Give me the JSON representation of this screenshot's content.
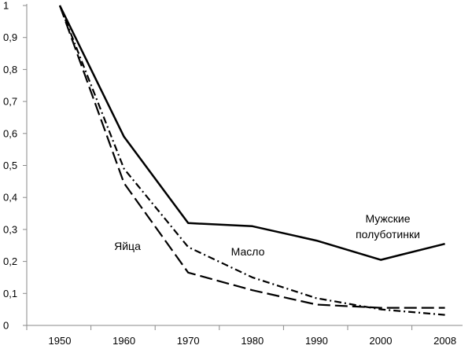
{
  "chart_data": {
    "type": "line",
    "title": "",
    "xlabel": "",
    "ylabel": "",
    "x": [
      1950,
      1960,
      1970,
      1980,
      1990,
      2000,
      2008
    ],
    "x_tick_labels": [
      "1950",
      "1960",
      "1970",
      "1980",
      "1990",
      "2000",
      "2008"
    ],
    "y_tick_labels": [
      "0",
      "0,1",
      "0,2",
      "0,3",
      "0,4",
      "0,5",
      "0,6",
      "0,7",
      "0,8",
      "0,9",
      "1"
    ],
    "ylim": [
      0,
      1
    ],
    "grid": false,
    "legend": "none",
    "series": [
      {
        "name": "Мужские полуботинки",
        "label_lines": [
          "Мужские",
          "полуботинки"
        ],
        "style": "solid",
        "color": "#000000",
        "values": [
          1.0,
          0.59,
          0.32,
          0.31,
          0.265,
          0.205,
          0.255
        ]
      },
      {
        "name": "Масло",
        "label_lines": [
          "Масло"
        ],
        "style": "dash-dot",
        "color": "#000000",
        "values": [
          1.0,
          0.49,
          0.245,
          0.15,
          0.085,
          0.05,
          0.033
        ]
      },
      {
        "name": "Яйца",
        "label_lines": [
          "Яйца"
        ],
        "style": "long-dash",
        "color": "#000000",
        "values": [
          1.0,
          0.445,
          0.165,
          0.11,
          0.065,
          0.055,
          0.055
        ]
      }
    ]
  }
}
